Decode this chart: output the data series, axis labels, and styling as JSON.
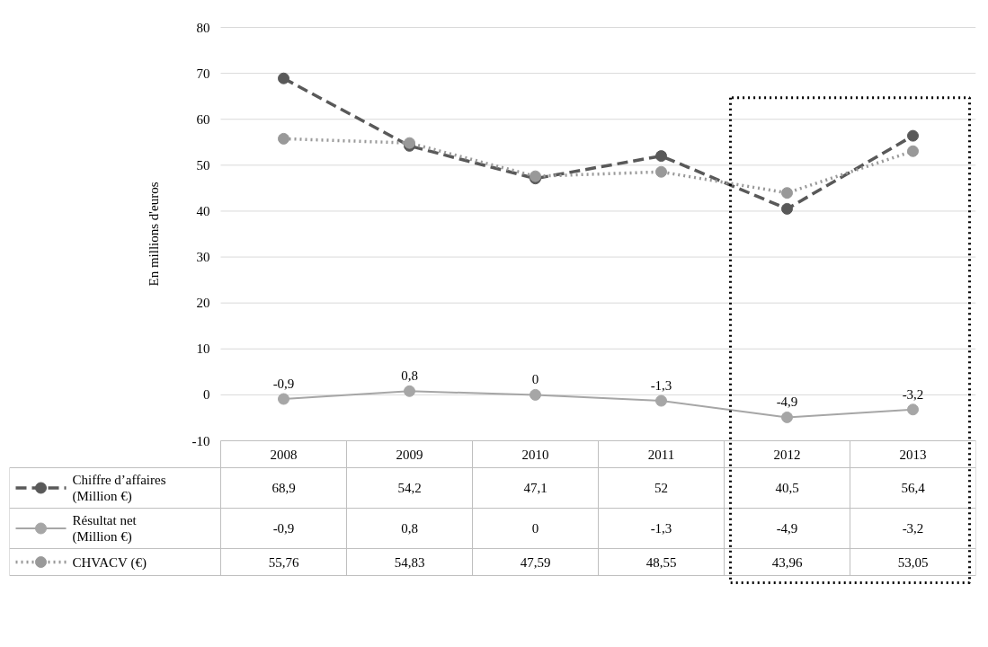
{
  "chart_data": {
    "type": "line",
    "ylabel": "En millions d'euros",
    "categories": [
      "2008",
      "2009",
      "2010",
      "2011",
      "2012",
      "2013"
    ],
    "ylim": [
      -10,
      80
    ],
    "yticks": [
      -10,
      0,
      10,
      20,
      30,
      40,
      50,
      60,
      70,
      80
    ],
    "grid": "y",
    "marker": "circle",
    "legend": "bottom left",
    "series": [
      {
        "name": "Chiffre d’affaires (Million €)",
        "color": "#595959",
        "line_style": "dashed",
        "values": [
          68.9,
          54.2,
          47.1,
          52,
          40.5,
          56.4
        ],
        "value_labels": [
          "68,9",
          "54,2",
          "47,1",
          "52",
          "40,5",
          "56,4"
        ]
      },
      {
        "name": "Résultat net (Million €)",
        "color": "#a6a6a6",
        "line_style": "solid",
        "values": [
          -0.9,
          0.8,
          0,
          -1.3,
          -4.9,
          -3.2
        ],
        "value_labels": [
          "-0,9",
          "0,8",
          "0",
          "-1,3",
          "-4,9",
          "-3,2"
        ]
      },
      {
        "name": "CHVACV (€)",
        "color": "#999999",
        "line_style": "dotted",
        "values": [
          55.76,
          54.83,
          47.59,
          48.55,
          43.96,
          53.05
        ],
        "value_labels": [
          "55,76",
          "54,83",
          "47,59",
          "48,55",
          "43,96",
          "53,05"
        ]
      }
    ],
    "annotations": [
      {
        "text": "-0,9",
        "x": "2008",
        "y": -0.9
      },
      {
        "text": "0,8",
        "x": "2009",
        "y": 0.8
      },
      {
        "text": "0",
        "x": "2010",
        "y": 0
      },
      {
        "text": "-1,3",
        "x": "2011",
        "y": -1.3
      },
      {
        "text": "-4,9",
        "x": "2012",
        "y": -4.9
      },
      {
        "text": "-3,2",
        "x": "2013",
        "y": -3.2
      }
    ]
  }
}
